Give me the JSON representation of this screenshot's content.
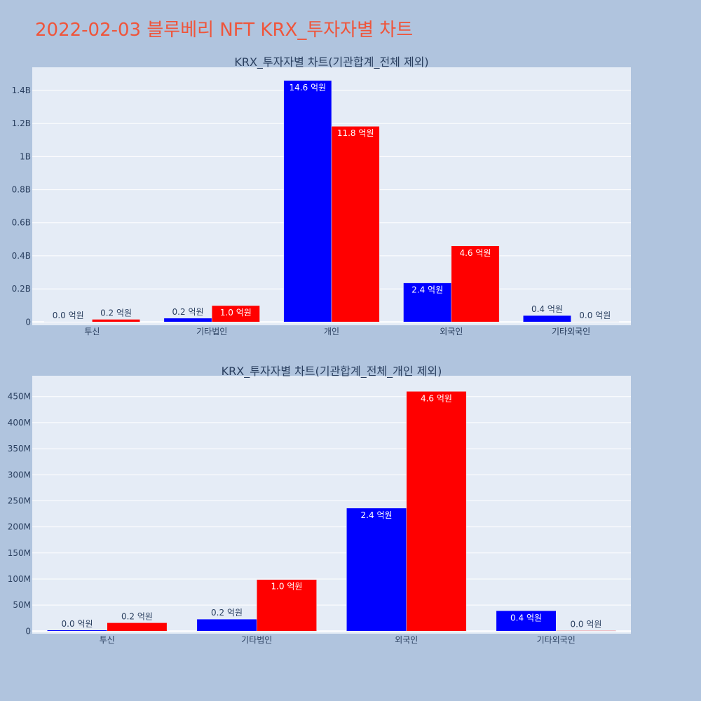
{
  "page": {
    "title": "2022-02-03 블루베리 NFT KRX_투자자별 차트",
    "title_color": "#ef553b",
    "background": "#b0c4de",
    "plot_background": "#e5ecf6"
  },
  "colors": {
    "series_a": "#0000ff",
    "series_b": "#ff0000"
  },
  "chart_data": [
    {
      "type": "bar",
      "title": "KRX_투자자별 차트(기관합계_전체 제외)",
      "categories": [
        "투신",
        "기타법인",
        "개인",
        "외국인",
        "기타외국인"
      ],
      "series": [
        {
          "color": "#0000ff",
          "values": [
            2000000,
            23000000,
            1460000000,
            236000000,
            39000000
          ],
          "labels": [
            "0.0 억원",
            "0.2 억원",
            "14.6 억원",
            "2.4 억원",
            "0.4 억원"
          ]
        },
        {
          "color": "#ff0000",
          "values": [
            16000000,
            99000000,
            1183000000,
            460000000,
            1000000
          ],
          "labels": [
            "0.2 억원",
            "1.0 억원",
            "11.8 억원",
            "4.6 억원",
            "0.0 억원"
          ]
        }
      ],
      "ylim": [
        -20000000,
        1540000000
      ],
      "yticks": [
        0,
        200000000,
        400000000,
        600000000,
        800000000,
        1000000000,
        1200000000,
        1400000000
      ],
      "ytick_labels": [
        "0",
        "0.2B",
        "0.4B",
        "0.6B",
        "0.8B",
        "1B",
        "1.2B",
        "1.4B"
      ],
      "grid": true,
      "legend": "none"
    },
    {
      "type": "bar",
      "title": "KRX_투자자별 차트(기관합계_전체_개인 제외)",
      "categories": [
        "투신",
        "기타법인",
        "외국인",
        "기타외국인"
      ],
      "series": [
        {
          "color": "#0000ff",
          "values": [
            2000000,
            23000000,
            236000000,
            39000000
          ],
          "labels": [
            "0.0 억원",
            "0.2 억원",
            "2.4 억원",
            "0.4 억원"
          ]
        },
        {
          "color": "#ff0000",
          "values": [
            16000000,
            99000000,
            460000000,
            1000000
          ],
          "labels": [
            "0.2 억원",
            "1.0 억원",
            "4.6 억원",
            "0.0 억원"
          ]
        }
      ],
      "ylim": [
        -5000000,
        490000000
      ],
      "yticks": [
        0,
        50000000,
        100000000,
        150000000,
        200000000,
        250000000,
        300000000,
        350000000,
        400000000,
        450000000
      ],
      "ytick_labels": [
        "0",
        "50M",
        "100M",
        "150M",
        "200M",
        "250M",
        "300M",
        "350M",
        "400M",
        "450M"
      ],
      "grid": true,
      "legend": "none"
    }
  ]
}
